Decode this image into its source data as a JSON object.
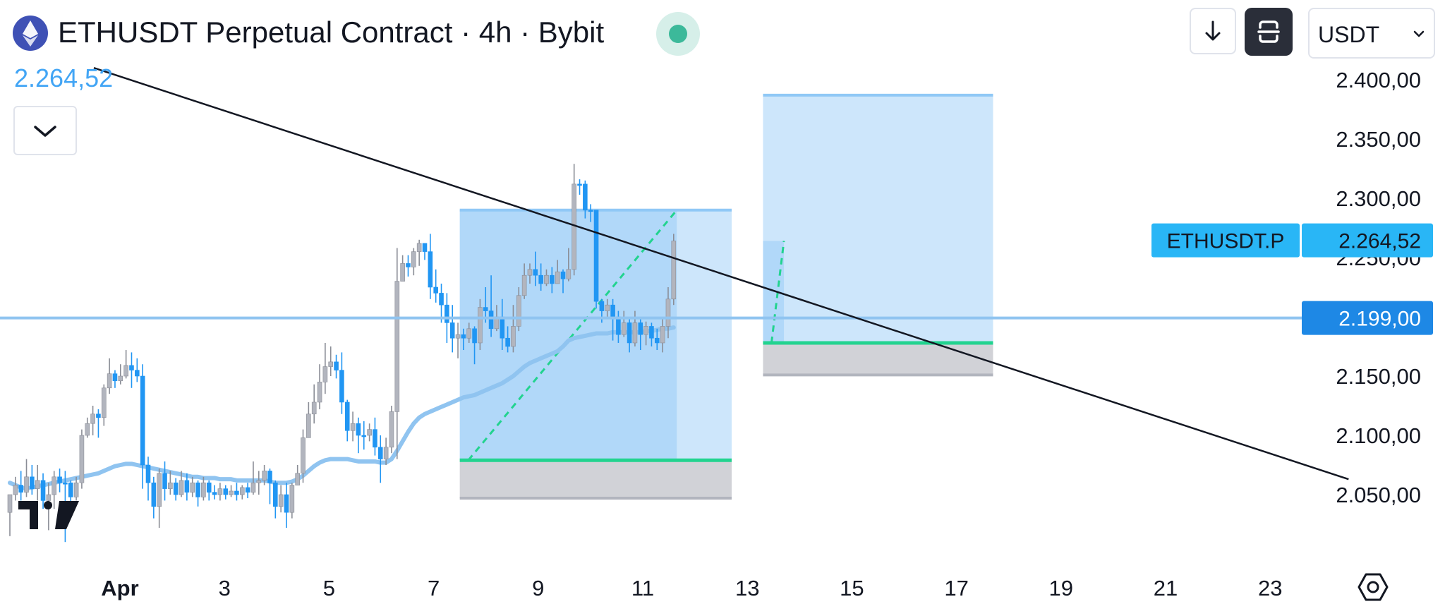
{
  "header": {
    "title": "ETHUSDT Perpetual Contract · 4h · Bybit",
    "coin_icon": "ethereum-icon",
    "currency": "USDT",
    "download_icon": "arrow-down-icon",
    "fullscreen_icon": "fullscreen-icon",
    "status_color": "#3cb99a"
  },
  "price_readout": "2.264,52",
  "price_tags": {
    "symbol": "ETHUSDT.P",
    "last_price": "2.264,52",
    "horizontal_line_price": "2.199,00"
  },
  "colors": {
    "up": "#2196f3",
    "down": "#b2b5be",
    "ma": "#90c4f0",
    "trend": "#131722",
    "target_green": "#22d38f",
    "zone_blue": "#90c8f6",
    "zone_grey": "#c9cad0"
  },
  "chart_data": {
    "type": "candlestick",
    "ylim": [
      2010,
      2415
    ],
    "y_ticks": [
      "2.400,00",
      "2.350,00",
      "2.300,00",
      "2.250,00",
      "2.200,00",
      "2.150,00",
      "2.100,00",
      "2.050,00"
    ],
    "y_tick_values": [
      2400,
      2350,
      2300,
      2250,
      2200,
      2150,
      2100,
      2050
    ],
    "x_tick_labels": [
      "Apr",
      "3",
      "5",
      "7",
      "9",
      "11",
      "13",
      "15",
      "17",
      "19",
      "21",
      "23"
    ],
    "x_tick_days": [
      1,
      3,
      5,
      7,
      9,
      11,
      13,
      15,
      17,
      19,
      21,
      23
    ],
    "candles": [
      [
        2050,
        2035,
        2050,
        2015
      ],
      [
        2058,
        2050,
        2065,
        2045
      ],
      [
        2052,
        2058,
        2070,
        2045
      ],
      [
        2065,
        2052,
        2080,
        2048
      ],
      [
        2055,
        2065,
        2075,
        2050
      ],
      [
        2062,
        2055,
        2075,
        2045
      ],
      [
        2045,
        2062,
        2068,
        2038
      ],
      [
        2050,
        2045,
        2060,
        2020
      ],
      [
        2065,
        2050,
        2070,
        2038
      ],
      [
        2060,
        2065,
        2072,
        2052
      ],
      [
        2060,
        2060,
        2070,
        2010
      ],
      [
        2048,
        2060,
        2062,
        2040
      ],
      [
        2060,
        2048,
        2065,
        2045
      ],
      [
        2100,
        2060,
        2105,
        2055
      ],
      [
        2110,
        2100,
        2115,
        2098
      ],
      [
        2118,
        2110,
        2125,
        2100
      ],
      [
        2115,
        2118,
        2122,
        2098
      ],
      [
        2140,
        2115,
        2143,
        2108
      ],
      [
        2152,
        2140,
        2165,
        2135
      ],
      [
        2146,
        2152,
        2155,
        2140
      ],
      [
        2150,
        2146,
        2160,
        2143
      ],
      [
        2159,
        2150,
        2172,
        2148
      ],
      [
        2155,
        2159,
        2170,
        2140
      ],
      [
        2150,
        2155,
        2165,
        2145
      ],
      [
        2075,
        2150,
        2160,
        2055
      ],
      [
        2060,
        2075,
        2082,
        2045
      ],
      [
        2040,
        2060,
        2065,
        2030
      ],
      [
        2068,
        2040,
        2072,
        2022
      ],
      [
        2055,
        2068,
        2078,
        2045
      ],
      [
        2060,
        2055,
        2070,
        2050
      ],
      [
        2050,
        2060,
        2064,
        2045
      ],
      [
        2062,
        2050,
        2070,
        2048
      ],
      [
        2052,
        2062,
        2068,
        2045
      ],
      [
        2060,
        2052,
        2065,
        2048
      ],
      [
        2048,
        2060,
        2062,
        2040
      ],
      [
        2060,
        2048,
        2065,
        2045
      ],
      [
        2052,
        2060,
        2062,
        2045
      ],
      [
        2050,
        2052,
        2058,
        2046
      ],
      [
        2055,
        2050,
        2060,
        2045
      ],
      [
        2050,
        2055,
        2058,
        2046
      ],
      [
        2053,
        2050,
        2058,
        2048
      ],
      [
        2050,
        2053,
        2060,
        2045
      ],
      [
        2056,
        2050,
        2058,
        2046
      ],
      [
        2052,
        2056,
        2060,
        2047
      ],
      [
        2060,
        2052,
        2078,
        2050
      ],
      [
        2062,
        2060,
        2070,
        2050
      ],
      [
        2070,
        2062,
        2075,
        2058
      ],
      [
        2060,
        2070,
        2072,
        2042
      ],
      [
        2040,
        2060,
        2062,
        2030
      ],
      [
        2050,
        2040,
        2058,
        2035
      ],
      [
        2035,
        2050,
        2060,
        2022
      ],
      [
        2058,
        2035,
        2060,
        2030
      ],
      [
        2068,
        2058,
        2075,
        2062
      ],
      [
        2098,
        2068,
        2105,
        2060
      ],
      [
        2118,
        2098,
        2128,
        2110
      ],
      [
        2128,
        2118,
        2143,
        2110
      ],
      [
        2145,
        2128,
        2160,
        2122
      ],
      [
        2158,
        2145,
        2178,
        2135
      ],
      [
        2162,
        2158,
        2175,
        2150
      ],
      [
        2155,
        2162,
        2168,
        2148
      ],
      [
        2128,
        2155,
        2170,
        2118
      ],
      [
        2104,
        2128,
        2130,
        2095
      ],
      [
        2110,
        2104,
        2120,
        2095
      ],
      [
        2100,
        2110,
        2115,
        2085
      ],
      [
        2100,
        2100,
        2112,
        2088
      ],
      [
        2105,
        2100,
        2110,
        2095
      ],
      [
        2090,
        2105,
        2115,
        2083
      ],
      [
        2080,
        2090,
        2100,
        2060
      ],
      [
        2090,
        2080,
        2098,
        2075
      ],
      [
        2120,
        2090,
        2125,
        2085
      ],
      [
        2230,
        2120,
        2258,
        2080
      ],
      [
        2245,
        2230,
        2252,
        2233
      ],
      [
        2242,
        2245,
        2252,
        2234
      ],
      [
        2255,
        2242,
        2258,
        2235
      ],
      [
        2262,
        2255,
        2265,
        2243
      ],
      [
        2255,
        2262,
        2262,
        2248
      ],
      [
        2225,
        2255,
        2270,
        2215
      ],
      [
        2220,
        2225,
        2240,
        2212
      ],
      [
        2210,
        2220,
        2228,
        2195
      ],
      [
        2195,
        2210,
        2220,
        2178
      ],
      [
        2182,
        2195,
        2210,
        2170
      ],
      [
        2185,
        2182,
        2195,
        2165
      ],
      [
        2182,
        2185,
        2190,
        2172
      ],
      [
        2190,
        2182,
        2195,
        2178
      ],
      [
        2178,
        2190,
        2192,
        2160
      ],
      [
        2208,
        2178,
        2215,
        2172
      ],
      [
        2205,
        2208,
        2225,
        2195
      ],
      [
        2190,
        2205,
        2235,
        2183
      ],
      [
        2200,
        2190,
        2210,
        2188
      ],
      [
        2182,
        2200,
        2215,
        2172
      ],
      [
        2175,
        2182,
        2192,
        2170
      ],
      [
        2192,
        2175,
        2210,
        2170
      ],
      [
        2218,
        2192,
        2225,
        2188
      ],
      [
        2235,
        2218,
        2245,
        2215
      ],
      [
        2240,
        2235,
        2245,
        2228
      ],
      [
        2235,
        2240,
        2255,
        2226
      ],
      [
        2228,
        2235,
        2245,
        2222
      ],
      [
        2235,
        2228,
        2240,
        2226
      ],
      [
        2228,
        2235,
        2242,
        2220
      ],
      [
        2238,
        2228,
        2248,
        2228
      ],
      [
        2232,
        2238,
        2240,
        2220
      ],
      [
        2240,
        2232,
        2258,
        2230
      ],
      [
        2312,
        2240,
        2329,
        2235
      ],
      [
        2312,
        2312,
        2316,
        2303
      ],
      [
        2290,
        2312,
        2315,
        2283
      ],
      [
        2290,
        2290,
        2295,
        2280
      ],
      [
        2213,
        2290,
        2290,
        2207
      ],
      [
        2205,
        2213,
        2215,
        2195
      ],
      [
        2210,
        2205,
        2215,
        2200
      ],
      [
        2200,
        2210,
        2215,
        2180
      ],
      [
        2185,
        2200,
        2205,
        2178
      ],
      [
        2195,
        2185,
        2205,
        2183
      ],
      [
        2178,
        2195,
        2200,
        2170
      ],
      [
        2195,
        2178,
        2205,
        2175
      ],
      [
        2185,
        2195,
        2200,
        2172
      ],
      [
        2192,
        2185,
        2196,
        2176
      ],
      [
        2182,
        2192,
        2195,
        2175
      ],
      [
        2178,
        2182,
        2190,
        2172
      ],
      [
        2192,
        2178,
        2200,
        2170
      ],
      [
        2215,
        2192,
        2225,
        2182
      ],
      [
        2264,
        2215,
        2270,
        2210
      ]
    ],
    "ma_series": [
      2060,
      2058,
      2056,
      2055,
      2056,
      2057,
      2058,
      2059,
      2060,
      2061,
      2062,
      2063,
      2064,
      2065,
      2066,
      2067,
      2068,
      2070,
      2072,
      2074,
      2075,
      2076,
      2076,
      2075,
      2074,
      2073,
      2072,
      2071,
      2070,
      2069,
      2068,
      2067,
      2066,
      2065,
      2065,
      2064,
      2064,
      2064,
      2063,
      2063,
      2063,
      2062,
      2062,
      2062,
      2062,
      2062,
      2062,
      2061,
      2060,
      2060,
      2060,
      2061,
      2063,
      2066,
      2070,
      2074,
      2077,
      2079,
      2080,
      2080,
      2080,
      2080,
      2079,
      2078,
      2078,
      2078,
      2078,
      2077,
      2077,
      2080,
      2087,
      2095,
      2103,
      2110,
      2115,
      2118,
      2120,
      2122,
      2124,
      2126,
      2128,
      2130,
      2132,
      2133,
      2134,
      2136,
      2138,
      2140,
      2142,
      2144,
      2147,
      2150,
      2154,
      2158,
      2161,
      2163,
      2165,
      2167,
      2169,
      2171,
      2175,
      2180,
      2182,
      2183,
      2184,
      2185,
      2186,
      2186,
      2186,
      2187,
      2187,
      2187,
      2187,
      2187,
      2187,
      2188,
      2188,
      2189,
      2190,
      2190,
      2191
    ],
    "series": [
      {
        "name": "ETHUSDT.P",
        "last": 2264.52
      }
    ],
    "horizontal_line": 2199.0,
    "trendline": {
      "start": {
        "day": 0.5,
        "price": 2410
      },
      "end": {
        "day": 24.5,
        "price": 2063
      }
    },
    "positions": [
      {
        "start_day": 7.5,
        "end_day": 12.7,
        "entry": 2079,
        "target": 2290,
        "stop": 2047,
        "reached": 2290,
        "reached_day": 11.65
      },
      {
        "start_day": 13.3,
        "end_day": 17.7,
        "entry": 2178,
        "target": 2387,
        "stop": 2151,
        "reached": 2264,
        "reached_day": 13.7
      }
    ]
  }
}
